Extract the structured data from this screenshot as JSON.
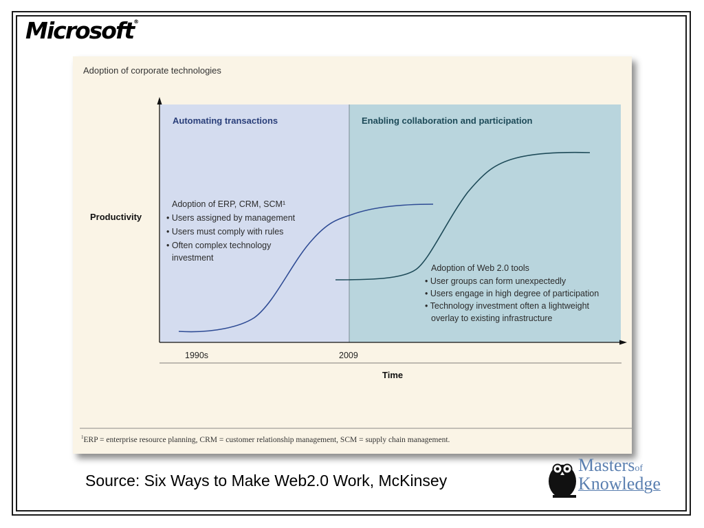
{
  "logo": {
    "text": "Microsoft",
    "mark": "®"
  },
  "chart": {
    "title": "Adoption of corporate technologies",
    "ylabel": "Productivity",
    "xlabel": "Time",
    "x_ticks": [
      "1990s",
      "2009"
    ],
    "regions": [
      {
        "label": "Automating transactions",
        "color": "#d4dcef"
      },
      {
        "label": "Enabling collaboration and participation",
        "color": "#b9d5dd"
      }
    ],
    "curve1": {
      "heading": "Adoption of ERP, CRM, SCM¹",
      "bullets": [
        "Users assigned by management",
        "Users must comply with rules",
        "Often complex technology investment"
      ],
      "color": "#2e4b94"
    },
    "curve2": {
      "heading": "Adoption of Web 2.0 tools",
      "bullets": [
        "User groups can form unexpectedly",
        "Users engage in high degree of participation",
        "Technology investment often a lightweight overlay to existing infrastructure"
      ],
      "color": "#1d4a58"
    }
  },
  "footnote": {
    "mark": "1",
    "text": "ERP = enterprise resource planning, CRM = customer relationship management, SCM = supply chain management."
  },
  "source": "Source: Six Ways to Make Web2.0 Work, McKinsey",
  "brand": {
    "line1": "Masters",
    "of": "of",
    "line2": "Knowledge"
  }
}
